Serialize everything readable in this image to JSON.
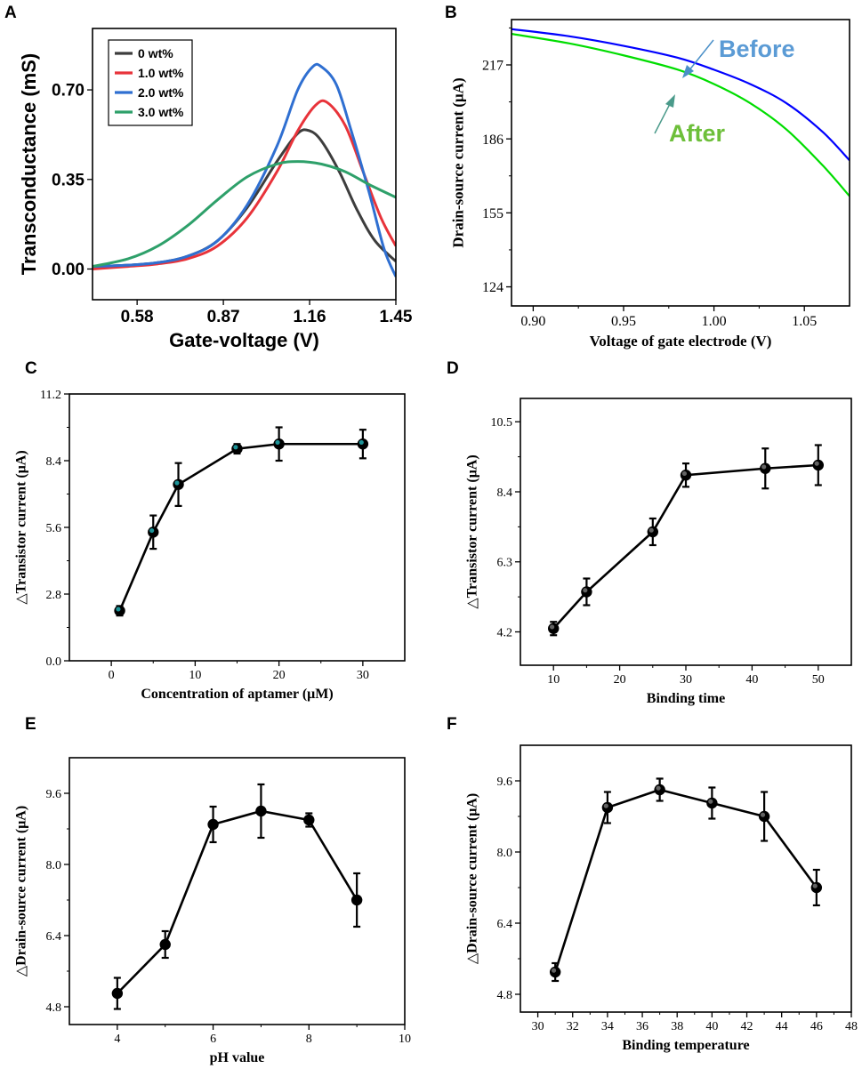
{
  "chart_data": [
    {
      "id": "A",
      "panel_label": "A",
      "type": "line",
      "title": "",
      "xlabel": "Gate-voltage (V)",
      "ylabel": "Transconductance (mS)",
      "xlim": [
        0.43,
        1.45
      ],
      "ylim": [
        -0.12,
        0.94
      ],
      "xticks": [
        0.58,
        0.87,
        1.16,
        1.45
      ],
      "xtick_labels": [
        "0.58",
        "0.87",
        "1.16",
        "1.45"
      ],
      "yticks": [
        0.0,
        0.35,
        0.7
      ],
      "ytick_labels": [
        "0.00",
        "0.35",
        "0.70"
      ],
      "legend_position": "top-left",
      "series": [
        {
          "name": "0 wt%",
          "color": "#3d3d3d",
          "x": [
            0.43,
            0.55,
            0.65,
            0.75,
            0.85,
            0.95,
            1.05,
            1.12,
            1.16,
            1.2,
            1.26,
            1.32,
            1.38,
            1.45
          ],
          "y": [
            0.01,
            0.015,
            0.025,
            0.05,
            0.11,
            0.24,
            0.42,
            0.53,
            0.54,
            0.5,
            0.38,
            0.23,
            0.11,
            0.03
          ]
        },
        {
          "name": "1.0 wt%",
          "color": "#e8333a",
          "x": [
            0.43,
            0.55,
            0.65,
            0.75,
            0.85,
            0.95,
            1.05,
            1.12,
            1.18,
            1.22,
            1.28,
            1.34,
            1.4,
            1.45
          ],
          "y": [
            0.0,
            0.01,
            0.02,
            0.04,
            0.09,
            0.2,
            0.38,
            0.54,
            0.64,
            0.65,
            0.56,
            0.38,
            0.2,
            0.09
          ]
        },
        {
          "name": "2.0 wt%",
          "color": "#2f6fd1",
          "x": [
            0.43,
            0.55,
            0.65,
            0.75,
            0.85,
            0.95,
            1.05,
            1.12,
            1.17,
            1.2,
            1.25,
            1.3,
            1.36,
            1.41,
            1.45
          ],
          "y": [
            0.01,
            0.015,
            0.025,
            0.05,
            0.11,
            0.25,
            0.48,
            0.7,
            0.79,
            0.79,
            0.72,
            0.54,
            0.3,
            0.08,
            -0.03
          ]
        },
        {
          "name": "3.0 wt%",
          "color": "#2ea06a",
          "x": [
            0.43,
            0.55,
            0.65,
            0.75,
            0.85,
            0.95,
            1.05,
            1.12,
            1.2,
            1.28,
            1.36,
            1.45
          ],
          "y": [
            0.01,
            0.04,
            0.09,
            0.17,
            0.27,
            0.36,
            0.41,
            0.42,
            0.41,
            0.38,
            0.33,
            0.28
          ]
        }
      ]
    },
    {
      "id": "B",
      "panel_label": "B",
      "type": "line",
      "title": "",
      "xlabel": "Voltage of gate electrode (V)",
      "ylabel": "Drain-source current (μA)",
      "xlim": [
        0.888,
        1.075
      ],
      "ylim": [
        116,
        236
      ],
      "xticks": [
        0.9,
        0.95,
        1.0,
        1.05
      ],
      "xtick_labels": [
        "0.90",
        "0.95",
        "1.00",
        "1.05"
      ],
      "yticks": [
        124,
        155,
        186,
        217
      ],
      "ytick_labels": [
        "124",
        "155",
        "186",
        "217"
      ],
      "annotations": [
        {
          "text": "Before",
          "color": "#5b9bd5"
        },
        {
          "text": "After",
          "color": "#6dbf3a"
        }
      ],
      "series": [
        {
          "name": "Before",
          "color": "#0000ff",
          "x": [
            0.888,
            0.92,
            0.95,
            0.98,
            1.0,
            1.02,
            1.04,
            1.06,
            1.075
          ],
          "y": [
            232,
            229,
            225,
            220,
            215,
            209,
            201,
            189,
            177
          ]
        },
        {
          "name": "After",
          "color": "#00dd00",
          "x": [
            0.888,
            0.92,
            0.95,
            0.98,
            1.0,
            1.02,
            1.04,
            1.06,
            1.075
          ],
          "y": [
            230,
            226,
            221,
            215,
            209,
            201,
            190,
            175,
            162
          ]
        }
      ]
    },
    {
      "id": "C",
      "panel_label": "C",
      "type": "line",
      "title": "",
      "xlabel": "Concentration of aptamer (μM)",
      "ylabel": "△Transistor current (μA)",
      "xlim": [
        -5,
        35
      ],
      "ylim": [
        0.0,
        11.2
      ],
      "xticks": [
        0,
        10,
        20,
        30
      ],
      "xtick_labels": [
        "0",
        "10",
        "20",
        "30"
      ],
      "yticks": [
        0.0,
        2.8,
        5.6,
        8.4,
        11.2
      ],
      "ytick_labels": [
        "0.0",
        "2.8",
        "5.6",
        "8.4",
        "11.2"
      ],
      "marker_color": "#1fa3a8",
      "x": [
        1,
        5,
        8,
        15,
        20,
        30
      ],
      "values": [
        2.1,
        5.4,
        7.4,
        8.9,
        9.1,
        9.1
      ],
      "errors": [
        0.2,
        0.7,
        0.9,
        0.2,
        0.7,
        0.6
      ]
    },
    {
      "id": "D",
      "panel_label": "D",
      "type": "line",
      "title": "",
      "xlabel": "Binding time",
      "ylabel": "△Transistor current (μA)",
      "xlim": [
        5,
        55
      ],
      "ylim": [
        3.2,
        11.2
      ],
      "xticks": [
        10,
        20,
        30,
        40,
        50
      ],
      "xtick_labels": [
        "10",
        "20",
        "30",
        "40",
        "50"
      ],
      "yticks": [
        4.2,
        6.3,
        8.4,
        10.5
      ],
      "ytick_labels": [
        "4.2",
        "6.3",
        "8.4",
        "10.5"
      ],
      "marker_color": "#6e6e6e",
      "x": [
        10,
        15,
        25,
        30,
        42,
        50
      ],
      "values": [
        4.3,
        5.4,
        7.2,
        8.9,
        9.1,
        9.2
      ],
      "errors": [
        0.2,
        0.4,
        0.4,
        0.35,
        0.6,
        0.6
      ]
    },
    {
      "id": "E",
      "panel_label": "E",
      "type": "line",
      "title": "",
      "xlabel": "pH value",
      "ylabel": "△Drain-source current (μA)",
      "xlim": [
        3,
        10
      ],
      "ylim": [
        4.4,
        10.4
      ],
      "xticks": [
        4,
        6,
        8,
        10
      ],
      "xtick_labels": [
        "4",
        "6",
        "8",
        "10"
      ],
      "yticks": [
        4.8,
        6.4,
        8.0,
        9.6
      ],
      "ytick_labels": [
        "4.8",
        "6.4",
        "8.0",
        "9.6"
      ],
      "marker_color": "#000000",
      "x": [
        4,
        5,
        6,
        7,
        8,
        9
      ],
      "values": [
        5.1,
        6.2,
        8.9,
        9.2,
        9.0,
        7.2
      ],
      "errors": [
        0.35,
        0.3,
        0.4,
        0.6,
        0.15,
        0.6
      ]
    },
    {
      "id": "F",
      "panel_label": "F",
      "type": "line",
      "title": "",
      "xlabel": "Binding temperature",
      "ylabel": "△Drain-source current (μA)",
      "xlim": [
        29,
        48
      ],
      "ylim": [
        4.4,
        10.4
      ],
      "xticks": [
        30,
        32,
        34,
        36,
        38,
        40,
        42,
        44,
        46,
        48
      ],
      "xtick_labels": [
        "30",
        "32",
        "34",
        "36",
        "38",
        "40",
        "42",
        "44",
        "46",
        "48"
      ],
      "yticks": [
        4.8,
        6.4,
        8.0,
        9.6
      ],
      "ytick_labels": [
        "4.8",
        "6.4",
        "8.0",
        "9.6"
      ],
      "marker_color": "#6e6e6e",
      "x": [
        31,
        34,
        37,
        40,
        43,
        46
      ],
      "values": [
        5.3,
        9.0,
        9.4,
        9.1,
        8.8,
        7.2
      ],
      "errors": [
        0.2,
        0.35,
        0.25,
        0.35,
        0.55,
        0.4
      ]
    }
  ]
}
